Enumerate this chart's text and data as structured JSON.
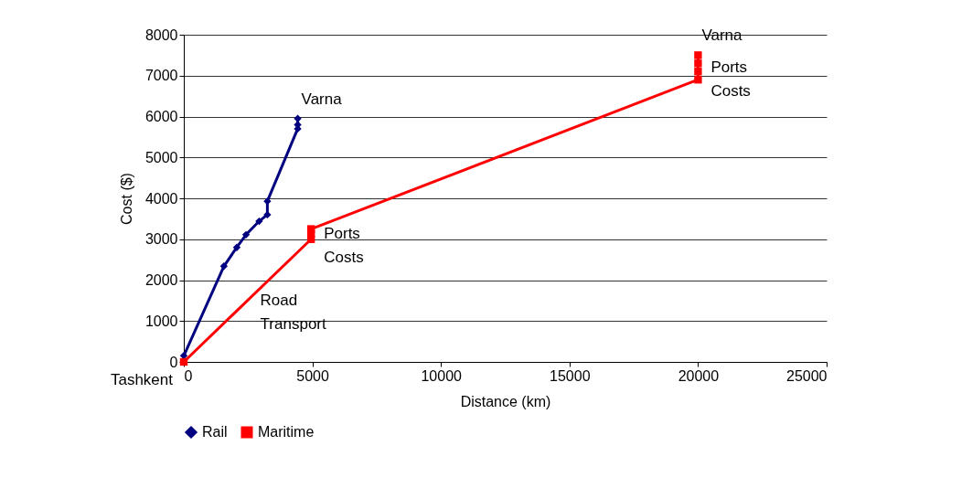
{
  "chart_data": {
    "type": "line",
    "xlabel": "Distance (km)",
    "ylabel": "Cost ($)",
    "xlim": [
      0,
      25000
    ],
    "xticks": [
      0,
      5000,
      10000,
      15000,
      20000,
      25000
    ],
    "ylim": [
      0,
      8000
    ],
    "yticks": [
      0,
      1000,
      2000,
      3000,
      4000,
      5000,
      6000,
      7000,
      8000
    ],
    "grid": "y",
    "legend": "bottom",
    "series": [
      {
        "name": "Rail",
        "color": "#000080",
        "marker": "diamond",
        "x": [
          0,
          1560,
          2060,
          2420,
          2930,
          3250,
          3250,
          4430,
          4430,
          4430
        ],
        "values": [
          150,
          2340,
          2800,
          3110,
          3440,
          3600,
          3930,
          5700,
          5800,
          5950
        ]
      },
      {
        "name": "Maritime",
        "color": "#ff0000",
        "marker": "square",
        "x": [
          0,
          4950,
          4950,
          4950,
          20000,
          20000,
          20000,
          20000
        ],
        "values": [
          0,
          3000,
          3130,
          3250,
          6900,
          7100,
          7300,
          7500
        ]
      }
    ],
    "annotations": [
      {
        "text": "Varna",
        "x": 4430,
        "y": 5950
      },
      {
        "text": "Varna",
        "x": 20000,
        "y": 7500
      },
      {
        "text": "Tashkent",
        "x": 0,
        "y": 0
      },
      {
        "text": "Ports Costs",
        "x": 4950,
        "y": 3130
      },
      {
        "text": "Ports Costs",
        "x": 20000,
        "y": 7200
      },
      {
        "text": "Road Transport",
        "x": 2475,
        "y": 1500
      }
    ]
  }
}
